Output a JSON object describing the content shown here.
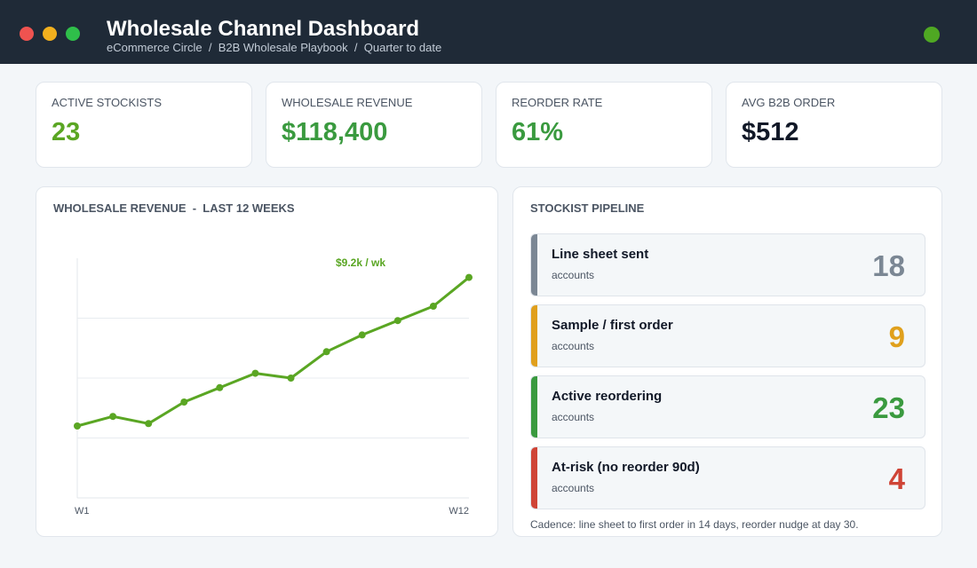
{
  "header": {
    "title": "Wholesale Channel Dashboard",
    "breadcrumb": [
      "eCommerce Circle",
      "B2B Wholesale Playbook",
      "Quarter to date"
    ]
  },
  "kpis": [
    {
      "label": "ACTIVE STOCKISTS",
      "value": "23",
      "color": "#5aa623"
    },
    {
      "label": "WHOLESALE REVENUE",
      "value": "$118,400",
      "color": "#3a9a3f"
    },
    {
      "label": "REORDER RATE",
      "value": "61%",
      "color": "#3a9a3f"
    },
    {
      "label": "AVG B2B ORDER",
      "value": "$512",
      "color": "#111827"
    }
  ],
  "chart_data": {
    "type": "line",
    "title": "WHOLESALE REVENUE  -  LAST 12 WEEKS",
    "annotation": "$9.2k / wk",
    "categories": [
      "W1",
      null,
      null,
      null,
      null,
      null,
      null,
      null,
      null,
      null,
      null,
      "W12"
    ],
    "values": [
      3.0,
      3.4,
      3.1,
      4.0,
      4.6,
      5.2,
      5.0,
      6.1,
      6.8,
      7.4,
      8.0,
      9.2
    ],
    "color": "#5aa623",
    "ylim": [
      0,
      10
    ],
    "yticks": [
      2.5,
      5,
      7.5
    ],
    "grid": true
  },
  "pipeline": {
    "title": "STOCKIST PIPELINE",
    "stages": [
      {
        "label": "Line sheet sent",
        "sub": "accounts",
        "count": 18,
        "color": "#7b8794"
      },
      {
        "label": "Sample / first order",
        "sub": "accounts",
        "count": 9,
        "color": "#e0a01c"
      },
      {
        "label": "Active reordering",
        "sub": "accounts",
        "count": 23,
        "color": "#3a9a3f"
      },
      {
        "label": "At-risk (no reorder 90d)",
        "sub": "accounts",
        "count": 4,
        "color": "#cf4436"
      }
    ],
    "footnote": "Cadence: line sheet to first order in 14 days, reorder nudge at day 30."
  }
}
